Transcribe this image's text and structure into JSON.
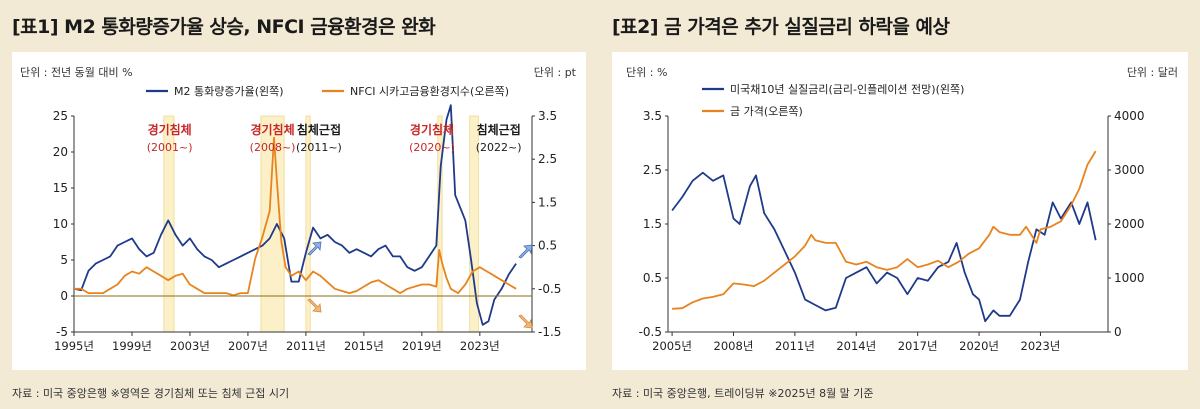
{
  "chart_data": [
    {
      "type": "line",
      "title": "[표1] M2 통화량증가율 상승, NFCI 금융환경은 완화",
      "left_unit": "단위 : 전년 동월 대비 %",
      "right_unit": "단위 : pt",
      "x_ticks": [
        "1995년",
        "1999년",
        "2003년",
        "2007년",
        "2011년",
        "2015년",
        "2019년",
        "2023년"
      ],
      "x_tick_years": [
        1995,
        1999,
        2003,
        2007,
        2011,
        2015,
        2019,
        2023
      ],
      "xlim": [
        1995,
        2026.6
      ],
      "ylim_left": [
        -5,
        25
      ],
      "ylim_right": [
        -1.5,
        3.5
      ],
      "y_ticks_left": [
        "25",
        "20",
        "15",
        "10",
        "5",
        "0",
        "-5"
      ],
      "y_ticks_right": [
        "3.5",
        "2.5",
        "1.5",
        "0.5",
        "-0.5",
        "-1.5"
      ],
      "series": [
        {
          "name": "M2 통화량증가율(왼쪽)",
          "axis": "left",
          "color": "#1f3a8a",
          "points": [
            [
              1995.0,
              1.0
            ],
            [
              1995.5,
              0.8
            ],
            [
              1996.0,
              3.5
            ],
            [
              1996.5,
              4.5
            ],
            [
              1997.0,
              5.0
            ],
            [
              1997.5,
              5.5
            ],
            [
              1998.0,
              7.0
            ],
            [
              1998.5,
              7.5
            ],
            [
              1999.0,
              8.0
            ],
            [
              1999.5,
              6.5
            ],
            [
              2000.0,
              5.5
            ],
            [
              2000.5,
              6.0
            ],
            [
              2001.0,
              8.5
            ],
            [
              2001.5,
              10.5
            ],
            [
              2002.0,
              8.5
            ],
            [
              2002.5,
              7.0
            ],
            [
              2003.0,
              8.0
            ],
            [
              2003.5,
              6.5
            ],
            [
              2004.0,
              5.5
            ],
            [
              2004.5,
              5.0
            ],
            [
              2005.0,
              4.0
            ],
            [
              2005.5,
              4.5
            ],
            [
              2006.0,
              5.0
            ],
            [
              2006.5,
              5.5
            ],
            [
              2007.0,
              6.0
            ],
            [
              2007.5,
              6.5
            ],
            [
              2008.0,
              7.0
            ],
            [
              2008.5,
              8.0
            ],
            [
              2009.0,
              10.0
            ],
            [
              2009.5,
              8.0
            ],
            [
              2010.0,
              2.0
            ],
            [
              2010.5,
              2.0
            ],
            [
              2011.0,
              6.0
            ],
            [
              2011.5,
              9.5
            ],
            [
              2012.0,
              8.0
            ],
            [
              2012.5,
              8.5
            ],
            [
              2013.0,
              7.5
            ],
            [
              2013.5,
              7.0
            ],
            [
              2014.0,
              6.0
            ],
            [
              2014.5,
              6.5
            ],
            [
              2015.0,
              6.0
            ],
            [
              2015.5,
              5.5
            ],
            [
              2016.0,
              6.5
            ],
            [
              2016.5,
              7.0
            ],
            [
              2017.0,
              5.5
            ],
            [
              2017.5,
              5.5
            ],
            [
              2018.0,
              4.0
            ],
            [
              2018.5,
              3.5
            ],
            [
              2019.0,
              4.0
            ],
            [
              2019.5,
              5.5
            ],
            [
              2020.0,
              7.0
            ],
            [
              2020.3,
              18.0
            ],
            [
              2020.7,
              24.5
            ],
            [
              2021.0,
              26.5
            ],
            [
              2021.3,
              14.0
            ],
            [
              2021.7,
              12.0
            ],
            [
              2022.0,
              10.5
            ],
            [
              2022.4,
              5.0
            ],
            [
              2022.8,
              -1.0
            ],
            [
              2023.2,
              -4.0
            ],
            [
              2023.6,
              -3.5
            ],
            [
              2024.0,
              -0.5
            ],
            [
              2024.5,
              1.0
            ],
            [
              2025.0,
              3.0
            ],
            [
              2025.5,
              4.5
            ]
          ]
        },
        {
          "name": "NFCI 시카고금융환경지수(오른쪽)",
          "axis": "right",
          "color": "#e8841f",
          "points": [
            [
              1995.0,
              -0.5
            ],
            [
              1995.5,
              -0.5
            ],
            [
              1996.0,
              -0.6
            ],
            [
              1996.5,
              -0.6
            ],
            [
              1997.0,
              -0.6
            ],
            [
              1997.5,
              -0.5
            ],
            [
              1998.0,
              -0.4
            ],
            [
              1998.5,
              -0.2
            ],
            [
              1999.0,
              -0.1
            ],
            [
              1999.5,
              -0.15
            ],
            [
              2000.0,
              0.0
            ],
            [
              2000.5,
              -0.1
            ],
            [
              2001.0,
              -0.2
            ],
            [
              2001.5,
              -0.3
            ],
            [
              2002.0,
              -0.2
            ],
            [
              2002.5,
              -0.15
            ],
            [
              2003.0,
              -0.4
            ],
            [
              2003.5,
              -0.5
            ],
            [
              2004.0,
              -0.6
            ],
            [
              2004.5,
              -0.6
            ],
            [
              2005.0,
              -0.6
            ],
            [
              2005.5,
              -0.6
            ],
            [
              2006.0,
              -0.65
            ],
            [
              2006.5,
              -0.6
            ],
            [
              2007.0,
              -0.6
            ],
            [
              2007.5,
              0.2
            ],
            [
              2008.0,
              0.7
            ],
            [
              2008.5,
              1.3
            ],
            [
              2008.8,
              3.0
            ],
            [
              2009.0,
              2.0
            ],
            [
              2009.3,
              0.6
            ],
            [
              2009.6,
              0.0
            ],
            [
              2010.0,
              -0.2
            ],
            [
              2010.5,
              -0.1
            ],
            [
              2011.0,
              -0.3
            ],
            [
              2011.5,
              -0.1
            ],
            [
              2012.0,
              -0.2
            ],
            [
              2012.5,
              -0.35
            ],
            [
              2013.0,
              -0.5
            ],
            [
              2013.5,
              -0.55
            ],
            [
              2014.0,
              -0.6
            ],
            [
              2014.5,
              -0.55
            ],
            [
              2015.0,
              -0.45
            ],
            [
              2015.5,
              -0.35
            ],
            [
              2016.0,
              -0.3
            ],
            [
              2016.5,
              -0.4
            ],
            [
              2017.0,
              -0.5
            ],
            [
              2017.5,
              -0.6
            ],
            [
              2018.0,
              -0.5
            ],
            [
              2018.5,
              -0.45
            ],
            [
              2019.0,
              -0.4
            ],
            [
              2019.5,
              -0.4
            ],
            [
              2020.0,
              -0.45
            ],
            [
              2020.2,
              0.4
            ],
            [
              2020.4,
              0.1
            ],
            [
              2020.7,
              -0.25
            ],
            [
              2021.0,
              -0.5
            ],
            [
              2021.5,
              -0.6
            ],
            [
              2022.0,
              -0.4
            ],
            [
              2022.5,
              -0.1
            ],
            [
              2023.0,
              0.0
            ],
            [
              2023.5,
              -0.1
            ],
            [
              2024.0,
              -0.2
            ],
            [
              2024.5,
              -0.3
            ],
            [
              2025.0,
              -0.4
            ],
            [
              2025.5,
              -0.5
            ]
          ]
        }
      ],
      "shaded_periods": [
        [
          2001.2,
          2001.9
        ],
        [
          2007.9,
          2009.5
        ],
        [
          2011.0,
          2011.3
        ],
        [
          2020.1,
          2020.4
        ],
        [
          2022.3,
          2022.9
        ]
      ],
      "annotations": [
        {
          "text": "경기침체",
          "sub": "(2001~)",
          "color": "#c62828",
          "x": 2001.6
        },
        {
          "text": "경기침체",
          "sub": "(2008~)",
          "color": "#c62828",
          "x": 2008.7
        },
        {
          "text": "침체근접",
          "sub": "(2011~)",
          "color": "#1a1a1a",
          "x": 2011.9
        },
        {
          "text": "경기침체",
          "sub": "(2020~)",
          "color": "#c62828",
          "x": 2019.7
        },
        {
          "text": "침체근접",
          "sub": "(2022~)",
          "color": "#1a1a1a",
          "x": 2024.3
        }
      ],
      "source": "자료 : 미국 중앙은행  ※영역은 경기침체 또는 침체 근접 시기"
    },
    {
      "type": "line",
      "title": "[표2] 금 가격은 추가 실질금리 하락을 예상",
      "left_unit": "단위 : %",
      "right_unit": "단위 : 달러",
      "x_ticks": [
        "2005년",
        "2008년",
        "2011년",
        "2014년",
        "2017년",
        "2020년",
        "2023년"
      ],
      "x_tick_years": [
        2005,
        2008,
        2011,
        2014,
        2017,
        2020,
        2023
      ],
      "xlim": [
        2004.8,
        2026.3
      ],
      "ylim_left": [
        -0.5,
        3.5
      ],
      "ylim_right": [
        0,
        4000
      ],
      "y_ticks_left": [
        "3.5",
        "2.5",
        "1.5",
        "0.5",
        "-0.5"
      ],
      "y_ticks_right": [
        "4000",
        "3000",
        "2000",
        "1000",
        "0"
      ],
      "series": [
        {
          "name": "미국채10년 실질금리(금리-인플레이션 전망)(왼쪽)",
          "axis": "left",
          "color": "#1f3a8a",
          "points": [
            [
              2005.0,
              1.75
            ],
            [
              2005.5,
              2.0
            ],
            [
              2006.0,
              2.3
            ],
            [
              2006.5,
              2.45
            ],
            [
              2007.0,
              2.3
            ],
            [
              2007.5,
              2.4
            ],
            [
              2008.0,
              1.6
            ],
            [
              2008.3,
              1.5
            ],
            [
              2008.8,
              2.2
            ],
            [
              2009.1,
              2.4
            ],
            [
              2009.5,
              1.7
            ],
            [
              2010.0,
              1.4
            ],
            [
              2010.5,
              1.0
            ],
            [
              2011.0,
              0.6
            ],
            [
              2011.5,
              0.1
            ],
            [
              2012.0,
              0.0
            ],
            [
              2012.5,
              -0.1
            ],
            [
              2013.0,
              -0.05
            ],
            [
              2013.5,
              0.5
            ],
            [
              2014.0,
              0.6
            ],
            [
              2014.5,
              0.7
            ],
            [
              2015.0,
              0.4
            ],
            [
              2015.5,
              0.6
            ],
            [
              2016.0,
              0.5
            ],
            [
              2016.5,
              0.2
            ],
            [
              2017.0,
              0.5
            ],
            [
              2017.5,
              0.45
            ],
            [
              2018.0,
              0.7
            ],
            [
              2018.5,
              0.8
            ],
            [
              2018.9,
              1.15
            ],
            [
              2019.3,
              0.6
            ],
            [
              2019.7,
              0.2
            ],
            [
              2020.0,
              0.1
            ],
            [
              2020.3,
              -0.3
            ],
            [
              2020.7,
              -0.1
            ],
            [
              2021.0,
              -0.2
            ],
            [
              2021.5,
              -0.2
            ],
            [
              2022.0,
              0.1
            ],
            [
              2022.4,
              0.8
            ],
            [
              2022.8,
              1.4
            ],
            [
              2023.2,
              1.3
            ],
            [
              2023.6,
              1.9
            ],
            [
              2024.0,
              1.6
            ],
            [
              2024.5,
              1.9
            ],
            [
              2024.9,
              1.5
            ],
            [
              2025.3,
              1.9
            ],
            [
              2025.7,
              1.2
            ]
          ]
        },
        {
          "name": "금 가격(오른쪽)",
          "axis": "right",
          "color": "#e8841f",
          "points": [
            [
              2005.0,
              430
            ],
            [
              2005.5,
              440
            ],
            [
              2006.0,
              550
            ],
            [
              2006.5,
              620
            ],
            [
              2007.0,
              650
            ],
            [
              2007.5,
              700
            ],
            [
              2008.0,
              900
            ],
            [
              2008.5,
              880
            ],
            [
              2009.0,
              850
            ],
            [
              2009.5,
              950
            ],
            [
              2010.0,
              1100
            ],
            [
              2010.5,
              1250
            ],
            [
              2011.0,
              1400
            ],
            [
              2011.5,
              1600
            ],
            [
              2011.8,
              1800
            ],
            [
              2012.0,
              1700
            ],
            [
              2012.5,
              1650
            ],
            [
              2013.0,
              1650
            ],
            [
              2013.5,
              1300
            ],
            [
              2014.0,
              1250
            ],
            [
              2014.5,
              1300
            ],
            [
              2015.0,
              1200
            ],
            [
              2015.5,
              1150
            ],
            [
              2016.0,
              1200
            ],
            [
              2016.5,
              1350
            ],
            [
              2017.0,
              1200
            ],
            [
              2017.5,
              1250
            ],
            [
              2018.0,
              1320
            ],
            [
              2018.5,
              1200
            ],
            [
              2019.0,
              1300
            ],
            [
              2019.5,
              1450
            ],
            [
              2020.0,
              1550
            ],
            [
              2020.5,
              1800
            ],
            [
              2020.7,
              1950
            ],
            [
              2021.0,
              1850
            ],
            [
              2021.5,
              1800
            ],
            [
              2022.0,
              1800
            ],
            [
              2022.3,
              1950
            ],
            [
              2022.8,
              1650
            ],
            [
              2023.0,
              1900
            ],
            [
              2023.5,
              1950
            ],
            [
              2024.0,
              2050
            ],
            [
              2024.5,
              2350
            ],
            [
              2024.9,
              2650
            ],
            [
              2025.3,
              3100
            ],
            [
              2025.7,
              3350
            ]
          ]
        }
      ],
      "source": "자료 : 미국 중앙은행, 트레이딩뷰 ※2025년 8월 말 기준"
    }
  ]
}
